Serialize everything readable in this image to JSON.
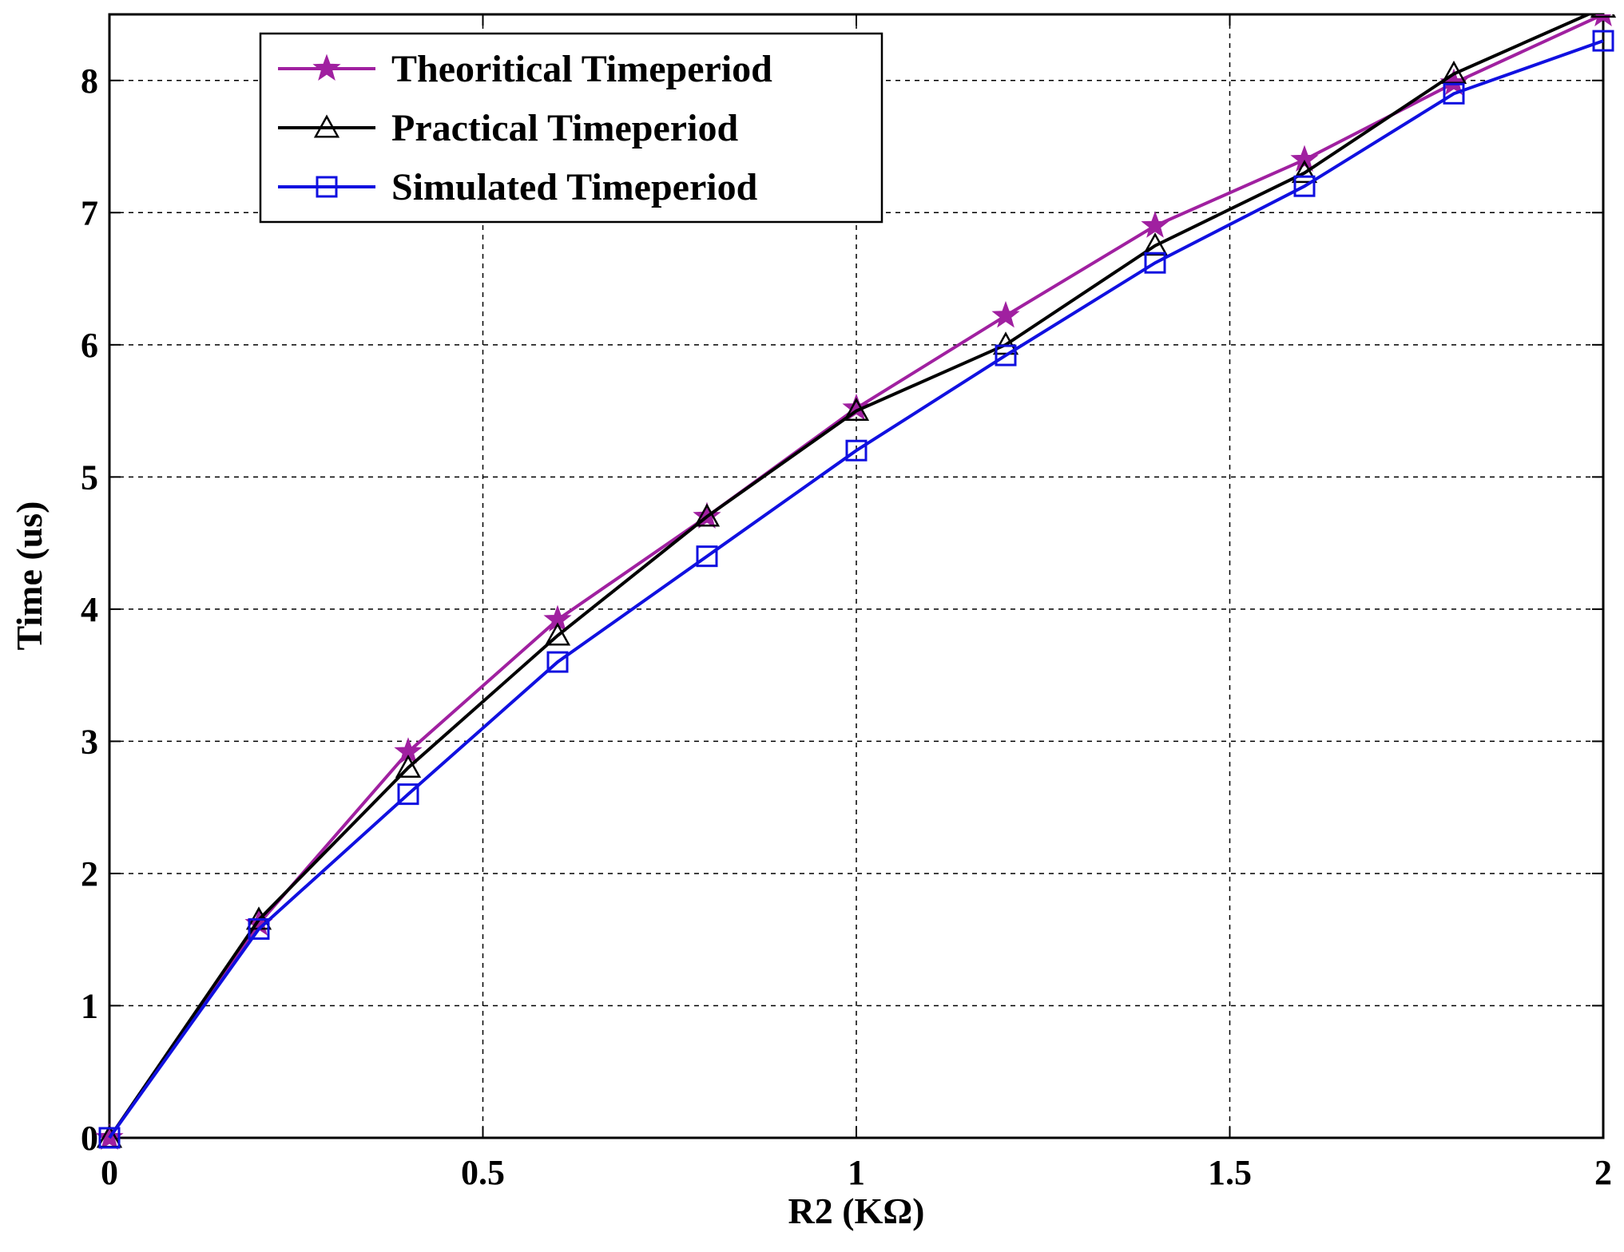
{
  "chart_data": {
    "type": "line",
    "title": "",
    "xlabel": "R2 (KΩ)",
    "ylabel": "Time (us)",
    "xlim": [
      0,
      2
    ],
    "ylim": [
      0,
      8.5
    ],
    "xticks": [
      0,
      0.5,
      1,
      1.5,
      2
    ],
    "xtick_labels": [
      "0",
      "0.5",
      "1",
      "1.5",
      "2"
    ],
    "yticks": [
      0,
      1,
      2,
      3,
      4,
      5,
      6,
      7,
      8
    ],
    "ytick_labels": [
      "0",
      "1",
      "2",
      "3",
      "4",
      "5",
      "6",
      "7",
      "8"
    ],
    "grid": true,
    "legend_position": "top-left",
    "x": [
      0,
      0.2,
      0.4,
      0.6,
      0.8,
      1.0,
      1.2,
      1.4,
      1.6,
      1.8,
      2.0
    ],
    "series": [
      {
        "name": "Theoritical Timeperiod",
        "color": "#a020a0",
        "marker": "star",
        "values": [
          0,
          1.62,
          2.92,
          3.92,
          4.7,
          5.52,
          6.22,
          6.9,
          7.4,
          7.98,
          8.5
        ]
      },
      {
        "name": "Practical Timeperiod",
        "color": "#000000",
        "marker": "triangle",
        "values": [
          0,
          1.65,
          2.8,
          3.8,
          4.7,
          5.5,
          6.0,
          6.75,
          7.3,
          8.05,
          8.55
        ]
      },
      {
        "name": "Simulated Timeperiod",
        "color": "#1010e0",
        "marker": "square",
        "values": [
          0,
          1.58,
          2.6,
          3.6,
          4.4,
          5.2,
          5.92,
          6.62,
          7.2,
          7.9,
          8.3
        ]
      }
    ]
  }
}
